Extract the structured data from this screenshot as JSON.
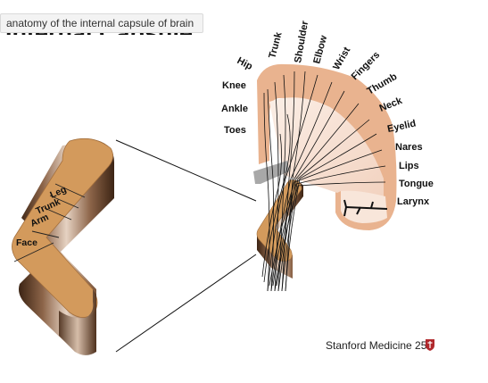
{
  "title": {
    "heading": "Internal Capsule",
    "tooltip": "anatomy of the internal capsule of brain"
  },
  "capsule_labels": [
    "Leg",
    "Trunk",
    "Arm",
    "Face"
  ],
  "homunculus_labels": [
    "Hip",
    "Trunk",
    "Shoulder",
    "Elbow",
    "Wrist",
    "Fingers",
    "Thumb",
    "Neck",
    "Eyelid",
    "Nares",
    "Lips",
    "Tongue",
    "Larynx",
    "Knee",
    "Ankle",
    "Toes"
  ],
  "credit": {
    "text": "Stanford Medicine 25",
    "logo_icon": "shield-logo-icon"
  },
  "colors": {
    "capsule_tan": "#d39a5c",
    "capsule_dark": "#5e3a22",
    "cortex_band": "#e9b38f",
    "fiber_fill": "#f6e2d6",
    "fibers": "#111111",
    "gray_tract": "#a8a8a8"
  }
}
